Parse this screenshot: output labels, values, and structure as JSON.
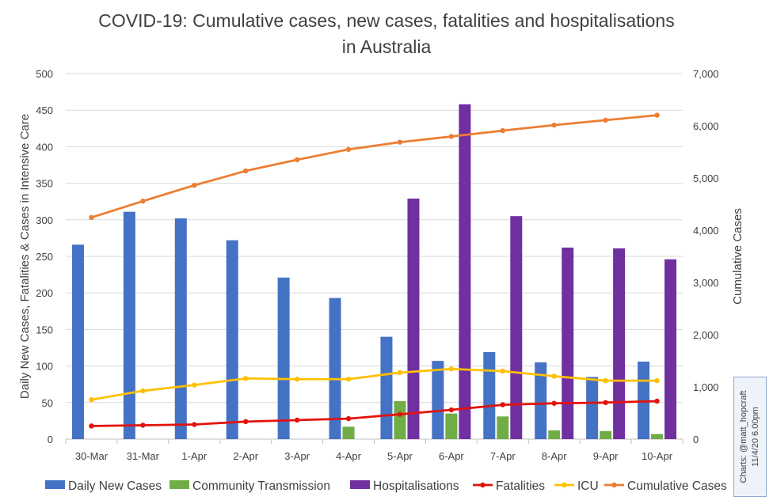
{
  "chart_data": {
    "type": "bar",
    "title": [
      "COVID-19: Cumulative cases, new cases, fatalities and hospitalisations",
      "in Australia"
    ],
    "categories": [
      "30-Mar",
      "31-Mar",
      "1-Apr",
      "2-Apr",
      "3-Apr",
      "4-Apr",
      "5-Apr",
      "6-Apr",
      "7-Apr",
      "8-Apr",
      "9-Apr",
      "10-Apr"
    ],
    "y_left": {
      "label": "Daily New Cases, Fatalities & Cases in Intensive Care",
      "range": [
        0,
        500
      ],
      "ticks": [
        "0",
        "50",
        "100",
        "150",
        "200",
        "250",
        "300",
        "350",
        "400",
        "450",
        "500"
      ]
    },
    "y_right": {
      "label": "Cumulative Cases",
      "range": [
        0,
        7000
      ],
      "ticks": [
        "0",
        "1,000",
        "2,000",
        "3,000",
        "4,000",
        "5,000",
        "6,000",
        "7,000"
      ]
    },
    "grid": true,
    "legend_position": "bottom",
    "series": [
      {
        "name": "Daily New Cases",
        "kind": "bar",
        "axis": "left",
        "color": "#4472C4",
        "values": [
          266,
          311,
          302,
          272,
          221,
          193,
          140,
          107,
          119,
          105,
          85,
          106
        ]
      },
      {
        "name": "Community Transmission",
        "kind": "bar",
        "axis": "left",
        "color": "#70AD47",
        "values": [
          null,
          null,
          null,
          null,
          null,
          17,
          52,
          35,
          31,
          12,
          11,
          7
        ]
      },
      {
        "name": "Hospitalisations",
        "kind": "bar",
        "axis": "left",
        "color": "#7030A0",
        "values": [
          null,
          null,
          null,
          null,
          null,
          null,
          329,
          458,
          305,
          262,
          261,
          246
        ]
      },
      {
        "name": "Fatalities",
        "kind": "line",
        "axis": "left",
        "color": "#E3120B",
        "values": [
          18,
          19,
          20,
          24,
          26,
          28,
          34,
          40,
          47,
          49,
          50,
          52
        ]
      },
      {
        "name": "ICU",
        "kind": "line",
        "axis": "left",
        "color": "#FFC000",
        "values": [
          54,
          66,
          74,
          83,
          82,
          82,
          91,
          96,
          93,
          86,
          80,
          80
        ]
      },
      {
        "name": "Cumulative Cases",
        "kind": "line",
        "axis": "right",
        "color": "#ED7D31",
        "values": [
          4245,
          4557,
          4860,
          5136,
          5350,
          5548,
          5687,
          5795,
          5908,
          6013,
          6108,
          6203
        ]
      }
    ]
  },
  "credit": {
    "line1": "Charts: @matt_hopcraft",
    "line2": "11/4/20 6.00pm"
  }
}
